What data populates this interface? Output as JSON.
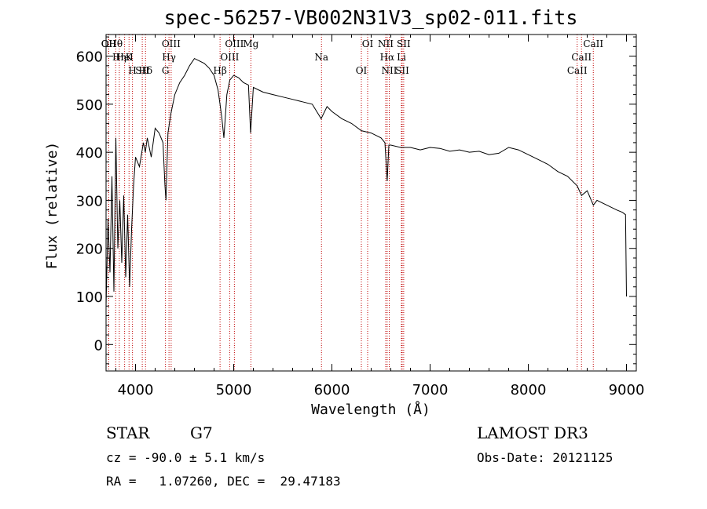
{
  "chart_data": {
    "type": "line",
    "title": "spec-56257-VB002N31V3_sp02-011.fits",
    "xlabel": "Wavelength (Å)",
    "ylabel": "Flux (relative)",
    "xlim": [
      3700,
      9100
    ],
    "ylim": [
      -55,
      645
    ],
    "xticks": [
      4000,
      5000,
      6000,
      7000,
      8000,
      9000
    ],
    "xtick_labels": [
      "4000",
      "5000",
      "6000",
      "7000",
      "8000",
      "9000"
    ],
    "yticks": [
      0,
      100,
      200,
      300,
      400,
      500,
      600
    ],
    "ytick_labels": [
      "0",
      "100",
      "200",
      "300",
      "400",
      "500",
      "600"
    ],
    "grid": false,
    "series": [
      {
        "name": "flux",
        "x": [
          3700,
          3720,
          3740,
          3760,
          3780,
          3800,
          3820,
          3840,
          3860,
          3880,
          3900,
          3920,
          3940,
          3960,
          3980,
          4000,
          4040,
          4080,
          4100,
          4120,
          4160,
          4200,
          4240,
          4280,
          4300,
          4310,
          4330,
          4360,
          4400,
          4450,
          4500,
          4550,
          4600,
          4650,
          4700,
          4750,
          4800,
          4840,
          4861,
          4880,
          4900,
          4930,
          4960,
          5000,
          5050,
          5100,
          5150,
          5172,
          5200,
          5250,
          5300,
          5400,
          5500,
          5600,
          5700,
          5800,
          5890,
          5950,
          6000,
          6100,
          6200,
          6300,
          6400,
          6500,
          6540,
          6563,
          6580,
          6600,
          6700,
          6800,
          6900,
          7000,
          7100,
          7200,
          7300,
          7400,
          7500,
          7600,
          7700,
          7800,
          7900,
          8000,
          8100,
          8200,
          8300,
          8400,
          8498,
          8542,
          8600,
          8662,
          8700,
          8800,
          8900,
          8960,
          8990,
          9000
        ],
        "y": [
          80,
          260,
          150,
          350,
          110,
          430,
          200,
          300,
          170,
          310,
          140,
          270,
          120,
          240,
          330,
          390,
          370,
          420,
          400,
          430,
          390,
          450,
          440,
          420,
          330,
          300,
          440,
          480,
          520,
          545,
          560,
          580,
          595,
          590,
          585,
          575,
          560,
          530,
          500,
          470,
          430,
          520,
          550,
          560,
          555,
          545,
          540,
          440,
          535,
          530,
          525,
          520,
          515,
          510,
          505,
          500,
          470,
          495,
          485,
          470,
          460,
          445,
          440,
          430,
          420,
          340,
          415,
          415,
          410,
          410,
          405,
          410,
          408,
          402,
          405,
          400,
          402,
          395,
          398,
          410,
          405,
          395,
          385,
          375,
          360,
          350,
          330,
          310,
          320,
          290,
          300,
          290,
          280,
          275,
          270,
          100
        ]
      }
    ],
    "line_markers": [
      {
        "label": "Hθ",
        "x": 3798
      },
      {
        "label": "K",
        "x": 3934
      },
      {
        "label": "Hδ",
        "x": 4102
      },
      {
        "label": "OII",
        "x": 3727
      },
      {
        "label": "HeI",
        "x": 3889
      },
      {
        "label": "SII",
        "x": 4069
      },
      {
        "label": "OII",
        "x": 3727
      },
      {
        "label": "Hη",
        "x": 3835
      },
      {
        "label": "H",
        "x": 3969
      },
      {
        "label": "OIII",
        "x": 4363
      },
      {
        "label": "Hγ",
        "x": 4341
      },
      {
        "label": "G",
        "x": 4305
      },
      {
        "label": "OIII",
        "x": 5007
      },
      {
        "label": "OIII",
        "x": 4959
      },
      {
        "label": "Hβ",
        "x": 4861
      },
      {
        "label": "Mg",
        "x": 5175
      },
      {
        "label": "Na",
        "x": 5894
      },
      {
        "label": "OI",
        "x": 6300
      },
      {
        "label": "OI",
        "x": 6364
      },
      {
        "label": "Hα",
        "x": 6563
      },
      {
        "label": "SII",
        "x": 6716
      },
      {
        "label": "NII",
        "x": 6548
      },
      {
        "label": "Li",
        "x": 6708
      },
      {
        "label": "NII",
        "x": 6584
      },
      {
        "label": "SII",
        "x": 6731
      },
      {
        "label": "CaII",
        "x": 8542
      },
      {
        "label": "CaII",
        "x": 8498
      },
      {
        "label": "CaII",
        "x": 8662
      }
    ]
  },
  "info": {
    "class_label": "STAR",
    "subclass": "G7",
    "survey": "LAMOST DR3",
    "cz": "cz = -90.0 ± 5.1 km/s",
    "obs_date": "Obs-Date: 20121125",
    "radec": "RA =   1.07260, DEC =  29.47183"
  }
}
